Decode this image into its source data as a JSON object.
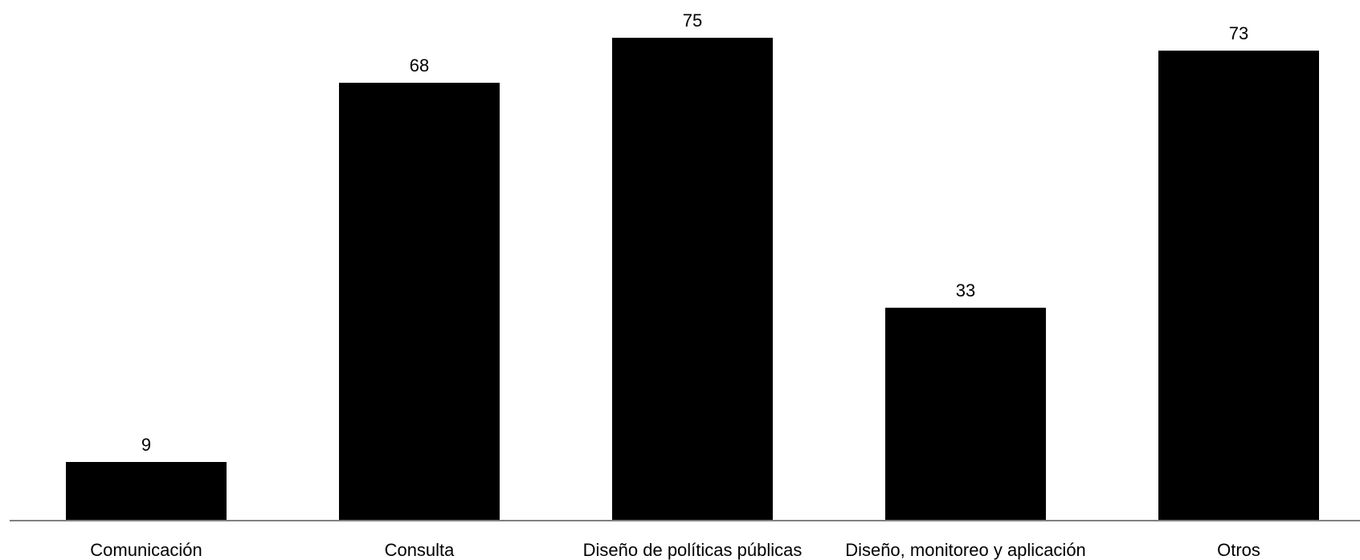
{
  "chart_data": {
    "type": "bar",
    "categories": [
      "Comunicación",
      "Consulta",
      "Diseño de políticas públicas",
      "Diseño, monitoreo y aplicación",
      "Otros"
    ],
    "values": [
      9,
      68,
      75,
      33,
      73
    ],
    "title": "",
    "xlabel": "",
    "ylabel": "",
    "ylim": [
      0,
      80
    ],
    "grid": false,
    "legend": "none",
    "data_labels": true,
    "bar_color": "#000000",
    "axis_color": "#808080"
  }
}
